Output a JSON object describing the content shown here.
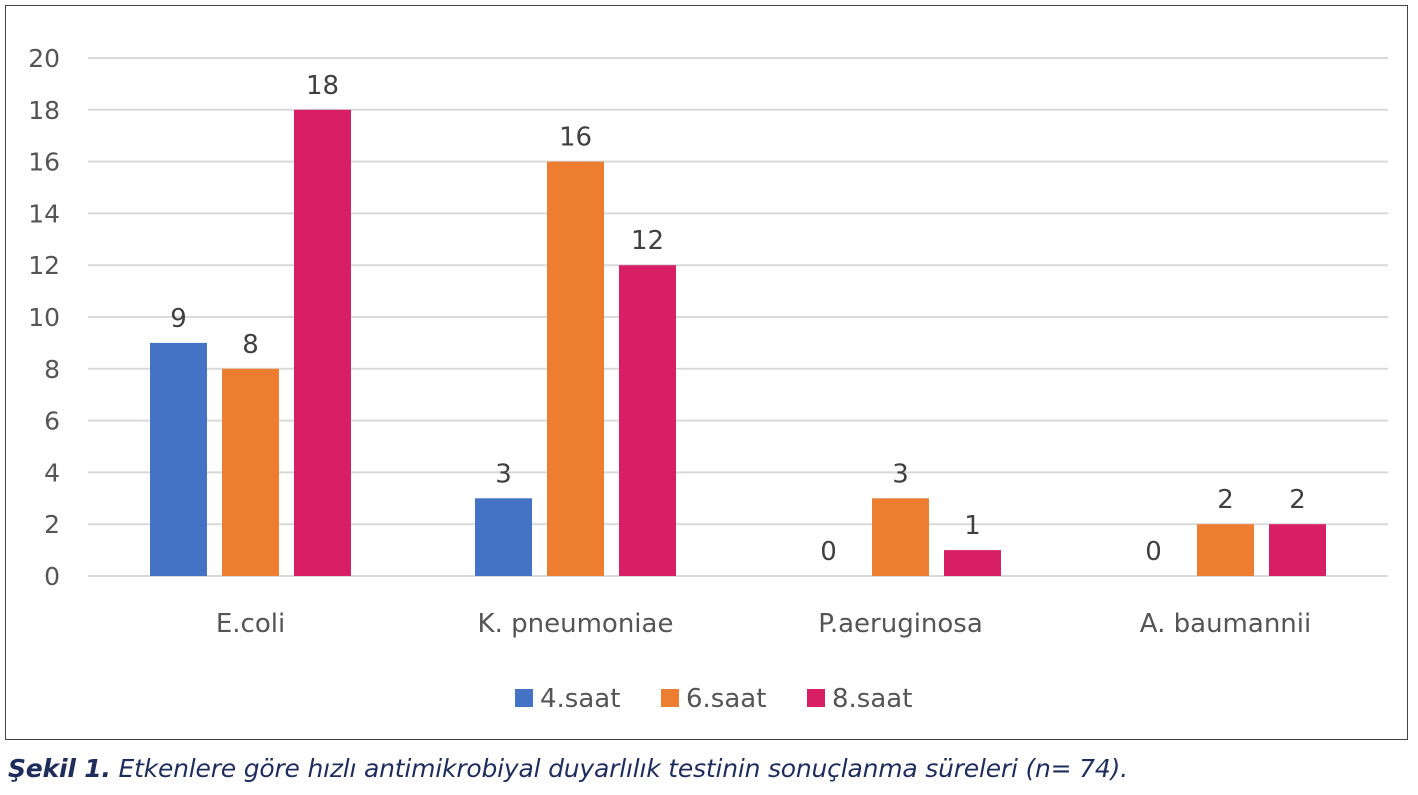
{
  "chart_data": {
    "type": "bar",
    "title": "",
    "xlabel": "",
    "ylabel": "",
    "categories": [
      "E.coli",
      "K. pneumoniae",
      "P.aeruginosa",
      "A. baumannii"
    ],
    "series": [
      {
        "name": "4.saat",
        "values": [
          9,
          3,
          0,
          0
        ],
        "color": "#4472c4"
      },
      {
        "name": "6.saat",
        "values": [
          8,
          16,
          3,
          2
        ],
        "color": "#ed7d31"
      },
      {
        "name": "8.saat",
        "values": [
          18,
          12,
          1,
          2
        ],
        "color": "#d81f66"
      }
    ],
    "ylim": [
      0,
      20
    ],
    "yticks": [
      0,
      2,
      4,
      6,
      8,
      10,
      12,
      14,
      16,
      18,
      20
    ],
    "grid": true,
    "legend": "bottom",
    "data_labels": true
  },
  "caption": {
    "label": "Şekil 1.",
    "text": " Etkenlere göre hızlı antimikrobiyal duyarlılık testinin sonuçlanma süreleri (n= 74)."
  },
  "colors": {
    "gridline": "#d9d9d9",
    "axis_text": "#555555",
    "caption": "#1f2d5c"
  }
}
